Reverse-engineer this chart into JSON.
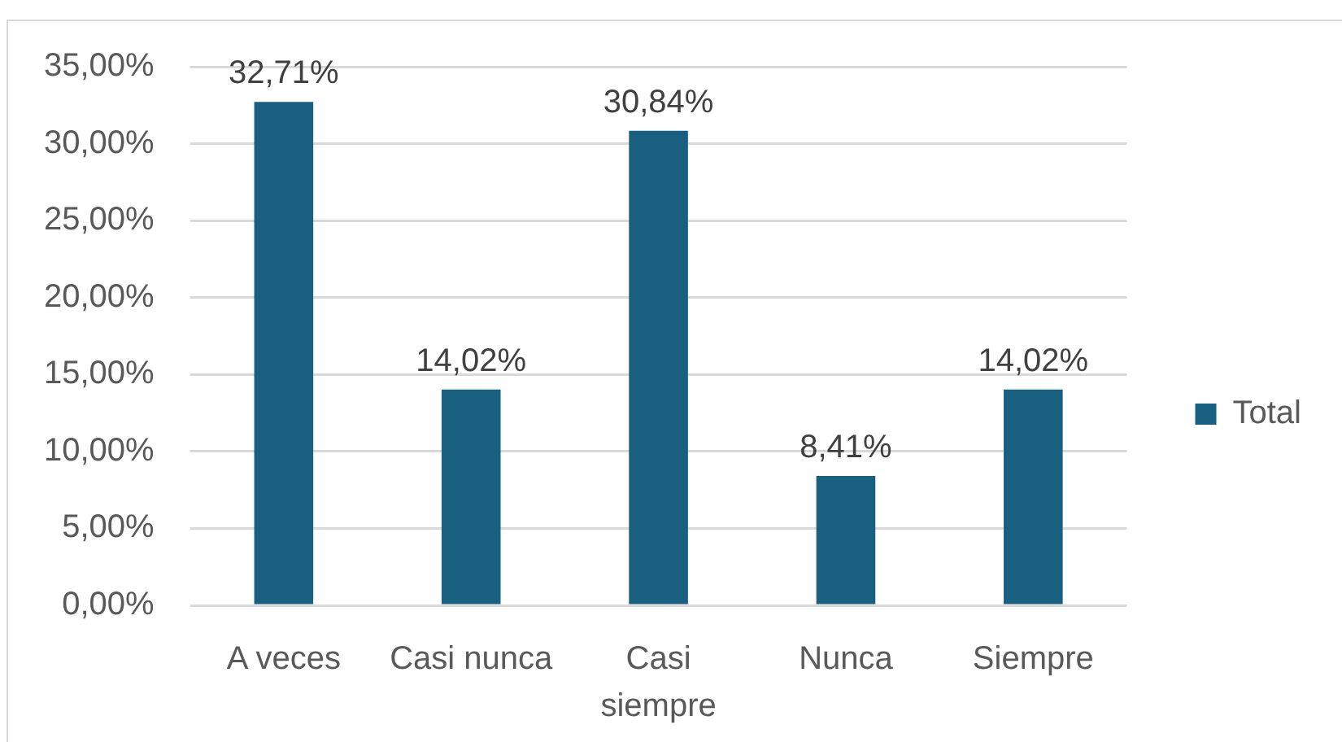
{
  "chart_data": {
    "type": "bar",
    "categories": [
      "A veces",
      "Casi nunca",
      "Casi siempre",
      "Nunca",
      "Siempre"
    ],
    "series": [
      {
        "name": "Total",
        "color": "#185f80",
        "values": [
          32.71,
          14.02,
          30.84,
          8.41,
          14.02
        ],
        "value_labels": [
          "32,71%",
          "14,02%",
          "30,84%",
          "8,41%",
          "14,02%"
        ]
      }
    ],
    "ylim": [
      0,
      35
    ],
    "yticks": [
      {
        "value": 0,
        "label": "0,00%"
      },
      {
        "value": 5,
        "label": "5,00%"
      },
      {
        "value": 10,
        "label": "10,00%"
      },
      {
        "value": 15,
        "label": "15,00%"
      },
      {
        "value": 20,
        "label": "20,00%"
      },
      {
        "value": 25,
        "label": "25,00%"
      },
      {
        "value": 30,
        "label": "30,00%"
      },
      {
        "value": 35,
        "label": "35,00%"
      }
    ],
    "grid": "y",
    "legend": "right"
  }
}
